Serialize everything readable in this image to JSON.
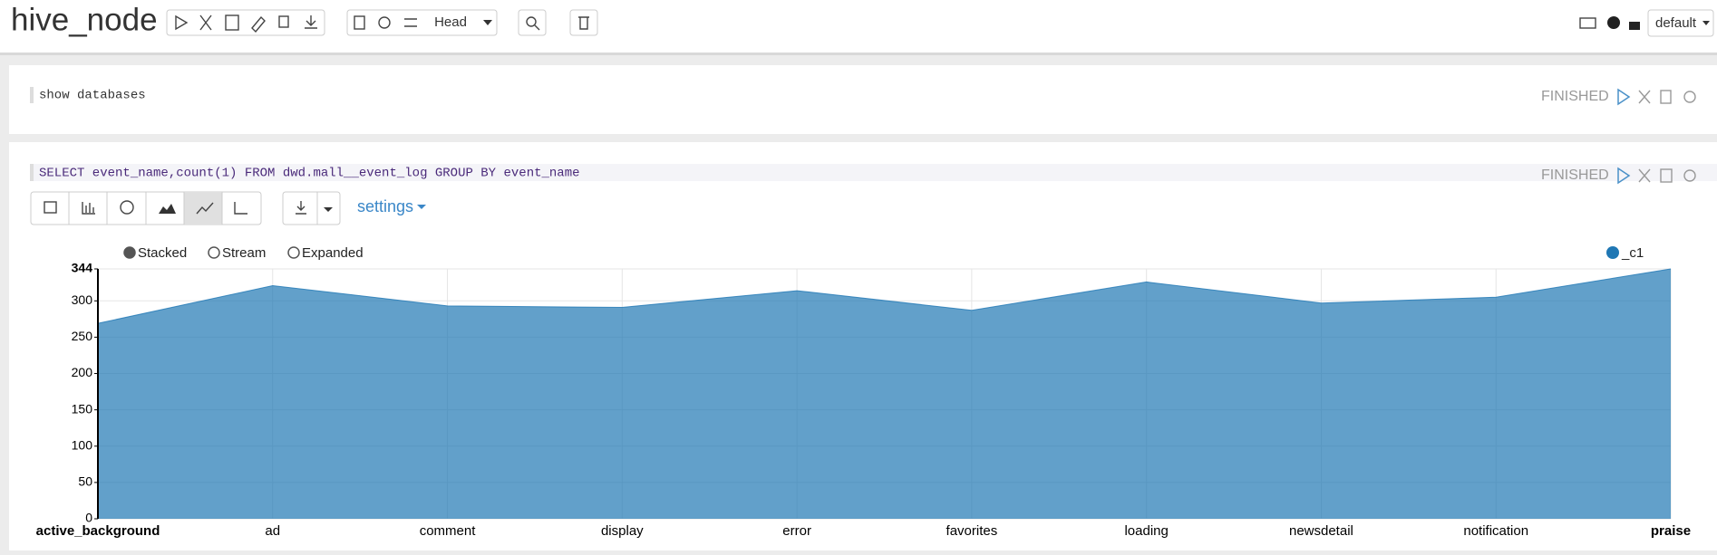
{
  "header": {
    "title": "hive_node",
    "branch": "Head",
    "interpreter": "default"
  },
  "paragraphs": [
    {
      "code": "show databases",
      "status": "FINISHED"
    },
    {
      "code": "SELECT event_name,count(1) FROM dwd.mall__event_log GROUP BY event_name",
      "status": "FINISHED",
      "settings": "settings",
      "modes": [
        "Stacked",
        "Stream",
        "Expanded"
      ]
    }
  ],
  "chart_data": {
    "type": "area",
    "categories": [
      "active_background",
      "ad",
      "comment",
      "display",
      "error",
      "favorites",
      "loading",
      "newsdetail",
      "notification",
      "praise"
    ],
    "series": [
      {
        "name": "_c1",
        "color": "#1f77b4",
        "values": [
          269,
          321,
          293,
          291,
          314,
          287,
          326,
          297,
          305,
          344
        ]
      }
    ],
    "ylim": [
      0,
      344
    ],
    "yticks": [
      0,
      50,
      100,
      150,
      200,
      250,
      300,
      344
    ],
    "grid": true,
    "legend": "top-right"
  }
}
